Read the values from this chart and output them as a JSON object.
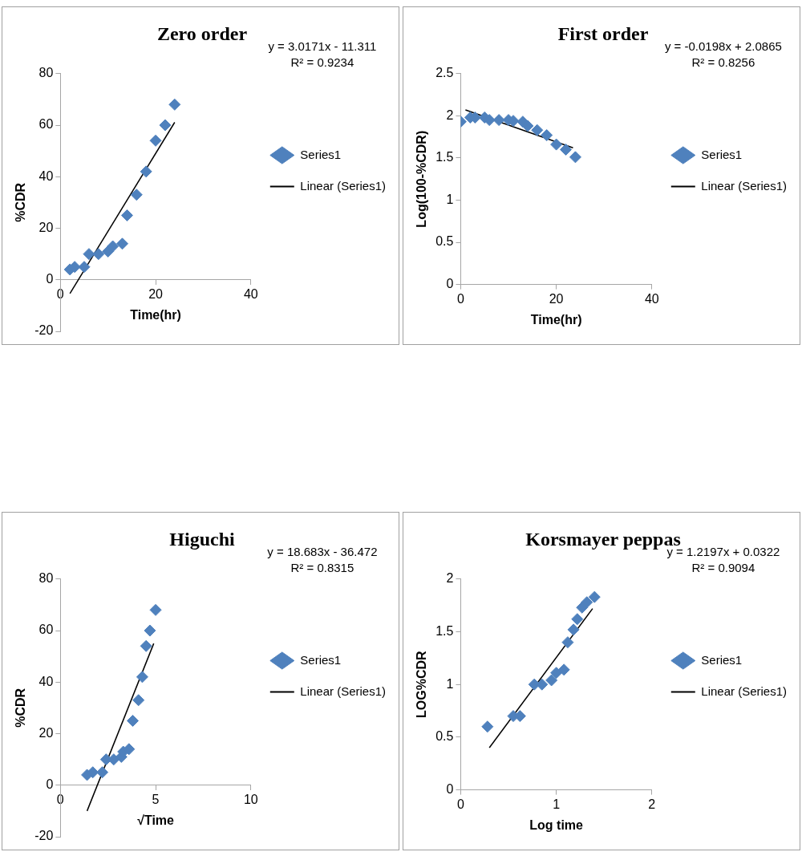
{
  "chart_data": [
    {
      "type": "scatter",
      "title": "Zero order",
      "xlabel": "Time(hr)",
      "ylabel": "%CDR",
      "xlim": [
        0,
        40
      ],
      "xticks": [
        0,
        20,
        40
      ],
      "ylim": [
        -20,
        80
      ],
      "yticks": [
        -20,
        0,
        20,
        40,
        60,
        80
      ],
      "grid": false,
      "legend": "right",
      "marker": "diamond",
      "annotations": [
        "y = 3.0171x - 11.311",
        "R² = 0.9234"
      ],
      "x": [
        2,
        3,
        5,
        6,
        8,
        10,
        11,
        13,
        14,
        16,
        18,
        20,
        22,
        24
      ],
      "series": [
        {
          "name": "Series1",
          "color": "#4f81bd",
          "values": [
            4,
            5,
            5,
            10,
            10,
            11,
            13,
            14,
            25,
            33,
            42,
            54,
            60,
            68
          ]
        },
        {
          "name": "Linear (Series1)",
          "type": "line",
          "color": "#000000",
          "marker": "none",
          "x": [
            2,
            24
          ],
          "values": [
            -5.3,
            61.1
          ]
        }
      ]
    },
    {
      "type": "scatter",
      "title": "First order",
      "xlabel": "Time(hr)",
      "ylabel": "Log(100-%CDR)",
      "xlim": [
        0,
        40
      ],
      "xticks": [
        0,
        20,
        40
      ],
      "ylim": [
        0,
        2.5
      ],
      "yticks": [
        0,
        0.5,
        1,
        1.5,
        2,
        2.5
      ],
      "grid": false,
      "legend": "right",
      "marker": "diamond",
      "annotations": [
        "y = -0.0198x + 2.0865",
        "R² = 0.8256"
      ],
      "x": [
        0,
        2,
        3,
        5,
        6,
        8,
        10,
        11,
        13,
        14,
        16,
        18,
        20,
        22,
        24
      ],
      "series": [
        {
          "name": "Series1",
          "color": "#4f81bd",
          "values": [
            1.93,
            1.98,
            1.98,
            1.98,
            1.95,
            1.95,
            1.95,
            1.94,
            1.93,
            1.88,
            1.83,
            1.77,
            1.66,
            1.6,
            1.51
          ]
        },
        {
          "name": "Linear (Series1)",
          "type": "line",
          "color": "#000000",
          "marker": "none",
          "x": [
            1,
            23.5
          ],
          "values": [
            2.07,
            1.62
          ]
        }
      ]
    },
    {
      "type": "scatter",
      "title": "Higuchi",
      "xlabel": "√Time",
      "ylabel": "%CDR",
      "xlim": [
        0,
        10
      ],
      "xticks": [
        0,
        5,
        10
      ],
      "ylim": [
        -20,
        80
      ],
      "yticks": [
        -20,
        0,
        20,
        40,
        60,
        80
      ],
      "grid": false,
      "legend": "right",
      "marker": "diamond",
      "annotations": [
        "y = 18.683x - 36.472",
        "R² = 0.8315"
      ],
      "x": [
        1.4,
        1.7,
        2.2,
        2.4,
        2.8,
        3.2,
        3.3,
        3.6,
        3.8,
        4.1,
        4.3,
        4.5,
        4.7,
        5
      ],
      "series": [
        {
          "name": "Series1",
          "color": "#4f81bd",
          "values": [
            4,
            5,
            5,
            10,
            10,
            11,
            13,
            14,
            25,
            33,
            42,
            54,
            60,
            68
          ]
        },
        {
          "name": "Linear (Series1)",
          "type": "line",
          "color": "#000000",
          "marker": "none",
          "x": [
            1.4,
            4.9
          ],
          "values": [
            -10,
            55
          ]
        }
      ]
    },
    {
      "type": "scatter",
      "title": "Korsmayer peppas",
      "xlabel": "Log time",
      "ylabel": "LOG%CDR",
      "xlim": [
        0,
        2
      ],
      "xticks": [
        0,
        1,
        2
      ],
      "ylim": [
        0,
        2
      ],
      "yticks": [
        0,
        0.5,
        1,
        1.5,
        2
      ],
      "grid": false,
      "legend": "right",
      "marker": "diamond",
      "annotations": [
        "y = 1.2197x + 0.0322",
        "R² = 0.9094"
      ],
      "x": [
        0.28,
        0.55,
        0.62,
        0.77,
        0.85,
        0.95,
        1.0,
        1.08,
        1.12,
        1.18,
        1.22,
        1.27,
        1.32,
        1.4
      ],
      "series": [
        {
          "name": "Series1",
          "color": "#4f81bd",
          "values": [
            0.6,
            0.7,
            0.7,
            1.0,
            1.0,
            1.04,
            1.11,
            1.14,
            1.4,
            1.52,
            1.62,
            1.73,
            1.78,
            1.83
          ]
        },
        {
          "name": "Linear (Series1)",
          "type": "line",
          "color": "#000000",
          "marker": "none",
          "x": [
            0.3,
            1.38
          ],
          "values": [
            0.4,
            1.72
          ]
        }
      ]
    }
  ]
}
